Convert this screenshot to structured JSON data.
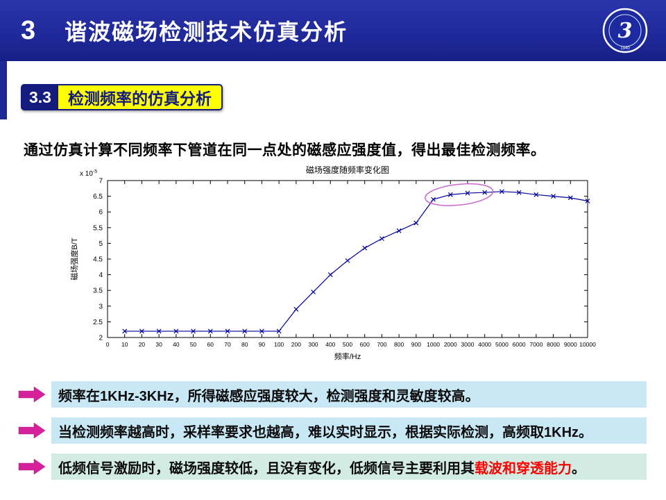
{
  "theme": {
    "header_bg": "#1d2695",
    "header_bg_light": "#2a35ab",
    "badge_navy": "#141c7d",
    "badge_yellow": "#ffff00",
    "bullet_blue_bg": "#c9e8f6",
    "bullet_green_bg": "#d2ebe3",
    "arrow_pink": "#d6219c",
    "highlight_red": "#ff0000"
  },
  "header": {
    "chapter_number": "3",
    "title": "谐波磁场检测技术仿真分析",
    "logo": {
      "numeral": "3",
      "year": "1940"
    }
  },
  "section": {
    "number": "3.3",
    "title": "检测频率的仿真分析"
  },
  "intro": "通过仿真计算不同频率下管道在同一点处的磁感应强度值，得出最佳检测频率。",
  "chart_data": {
    "type": "line",
    "title": "磁场强度随频率变化图",
    "xlabel": "频率/Hz",
    "ylabel": "磁场强度B/T",
    "y_exponent_base": "x 10",
    "y_exponent_power": "-5",
    "values_scale": "1e-5",
    "grid": false,
    "marker": "x",
    "line_color": "#00009c",
    "ylim": [
      2,
      7
    ],
    "y_ticks": [
      "2",
      "2.5",
      "3",
      "3.5",
      "4",
      "4.5",
      "5",
      "5.5",
      "6",
      "6.5",
      "7"
    ],
    "x_ticks": [
      "0",
      "10",
      "20",
      "30",
      "40",
      "50",
      "60",
      "70",
      "80",
      "90",
      "100",
      "200",
      "300",
      "400",
      "500",
      "600",
      "700",
      "800",
      "900",
      "1000",
      "2000",
      "3000",
      "4000",
      "5000",
      "6000",
      "7000",
      "8000",
      "9000",
      "10000"
    ],
    "x": [
      "10",
      "20",
      "30",
      "40",
      "50",
      "60",
      "70",
      "80",
      "90",
      "100",
      "200",
      "300",
      "400",
      "500",
      "600",
      "700",
      "800",
      "900",
      "1000",
      "2000",
      "3000",
      "4000",
      "5000",
      "6000",
      "7000",
      "8000",
      "9000",
      "10000"
    ],
    "values": [
      2.2,
      2.2,
      2.2,
      2.2,
      2.2,
      2.2,
      2.2,
      2.2,
      2.2,
      2.2,
      2.9,
      3.45,
      4.0,
      4.45,
      4.85,
      5.15,
      5.4,
      5.65,
      6.4,
      6.55,
      6.6,
      6.62,
      6.65,
      6.62,
      6.55,
      6.5,
      6.45,
      6.35
    ],
    "annotation": {
      "shape": "ellipse",
      "x_from": "1000",
      "x_to": "4000",
      "y_center": 6.55,
      "y_radius": 0.33,
      "rotate": -6,
      "color": "#cc66cc"
    }
  },
  "bullets": [
    {
      "prefix": "频率在1KHz-3KHz，所得磁感应强度较大，检测强度和灵敏度较高。",
      "highlight": "",
      "suffix": ""
    },
    {
      "prefix": "当检测频率越高时，采样率要求也越高，难以实时显示，根据实际检测，高频取1KHz。",
      "highlight": "",
      "suffix": ""
    },
    {
      "prefix": "低频信号激励时，磁场强度较低，且没有变化，低频信号主要利用其",
      "highlight": "载波和穿透能力",
      "suffix": "。"
    }
  ]
}
